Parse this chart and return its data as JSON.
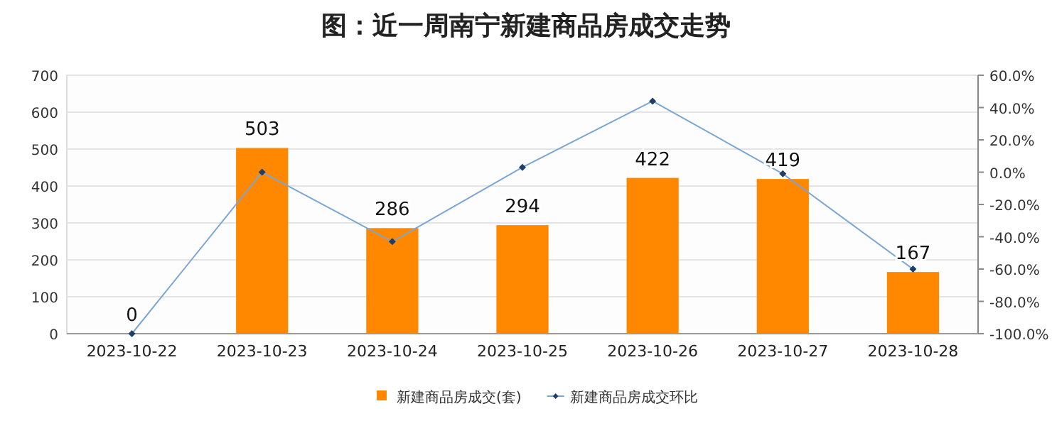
{
  "chart_data": {
    "type": "bar",
    "title": "图：近一周南宁新建商品房成交走势",
    "categories": [
      "2023-10-22",
      "2023-10-23",
      "2023-10-24",
      "2023-10-25",
      "2023-10-26",
      "2023-10-27",
      "2023-10-28"
    ],
    "series": [
      {
        "name": "新建商品房成交(套)",
        "color": "#ff8800",
        "values": [
          0,
          503,
          286,
          294,
          422,
          419,
          167
        ],
        "value_labels": [
          "0",
          "503",
          "286",
          "294",
          "422",
          "419",
          "167"
        ]
      },
      {
        "name": "新建商品房成交环比",
        "type": "line",
        "axis": "y2",
        "color": "#7aa6d6",
        "marker": "diamond",
        "values": [
          -100,
          0,
          -43,
          3,
          44,
          -1,
          -60
        ]
      }
    ],
    "ylim": [
      0,
      700
    ],
    "yticks": [
      0,
      100,
      200,
      300,
      400,
      500,
      600,
      700
    ],
    "y2lim": [
      -100,
      60
    ],
    "y2ticks": [
      {
        "value": -100,
        "label": "-100.0%"
      },
      {
        "value": -80,
        "label": "-80.0%"
      },
      {
        "value": -60,
        "label": "-60.0%"
      },
      {
        "value": -40,
        "label": "-40.0%"
      },
      {
        "value": -20,
        "label": "-20.0%"
      },
      {
        "value": 0,
        "label": "0.0%"
      },
      {
        "value": 20,
        "label": "20.0%"
      },
      {
        "value": 40,
        "label": "40.0%"
      },
      {
        "value": 60,
        "label": "60.0%"
      }
    ],
    "grid": "y",
    "legend": "bottom"
  }
}
